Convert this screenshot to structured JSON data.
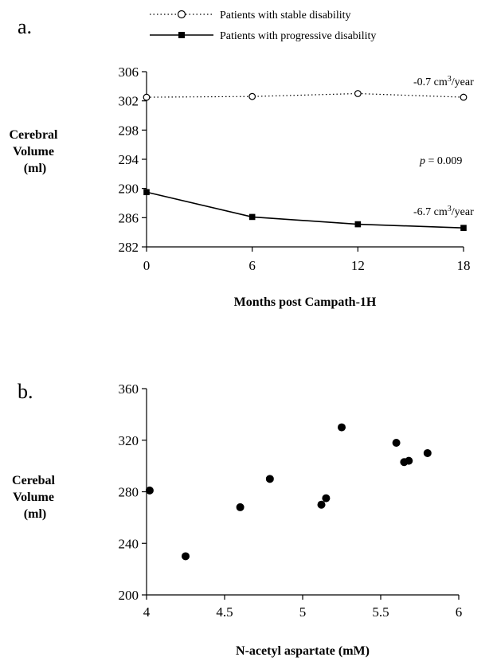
{
  "colors": {
    "ink": "#000000",
    "background": "#ffffff"
  },
  "chart_data": [
    {
      "type": "line",
      "panel_label": "a.",
      "title": "",
      "xlabel": "Months post Campath-1H",
      "ylabel_lines": [
        "Cerebral",
        "Volume",
        "(ml)"
      ],
      "x": [
        0,
        6,
        12,
        18
      ],
      "x_ticks": [
        "0",
        "6",
        "12",
        "18"
      ],
      "xlim": [
        0,
        18
      ],
      "y_ticks": [
        "282",
        "286",
        "290",
        "294",
        "298",
        "302",
        "306"
      ],
      "ylim": [
        282,
        306
      ],
      "grid": false,
      "legend_position": "top",
      "series": [
        {
          "name": "Patients with stable disability",
          "style": "dotted",
          "marker": "open-circle",
          "values": [
            302.5,
            302.6,
            303.0,
            302.5
          ],
          "end_label": "-0.7 cm³/year"
        },
        {
          "name": "Patients with progressive disability",
          "style": "solid",
          "marker": "filled-square",
          "values": [
            289.5,
            286.1,
            285.1,
            284.6
          ],
          "end_label": "-6.7 cm³/year"
        }
      ],
      "annotation": {
        "p_symbol": "p",
        "p_text": " = 0.009"
      }
    },
    {
      "type": "scatter",
      "panel_label": "b.",
      "title": "",
      "xlabel": "N-acetyl aspartate (mM)",
      "ylabel_lines": [
        "Cerebal",
        "Volume",
        "(ml)"
      ],
      "x_ticks": [
        "4",
        "4.5",
        "5",
        "5.5",
        "6"
      ],
      "xlim": [
        4,
        6
      ],
      "y_ticks": [
        "200",
        "240",
        "280",
        "320",
        "360"
      ],
      "ylim": [
        200,
        360
      ],
      "grid": false,
      "points": [
        {
          "x": 4.02,
          "y": 281
        },
        {
          "x": 4.25,
          "y": 230
        },
        {
          "x": 4.6,
          "y": 268
        },
        {
          "x": 4.79,
          "y": 290
        },
        {
          "x": 5.12,
          "y": 270
        },
        {
          "x": 5.15,
          "y": 275
        },
        {
          "x": 5.25,
          "y": 330
        },
        {
          "x": 5.6,
          "y": 318
        },
        {
          "x": 5.65,
          "y": 303
        },
        {
          "x": 5.68,
          "y": 304
        },
        {
          "x": 5.8,
          "y": 310
        }
      ]
    }
  ]
}
